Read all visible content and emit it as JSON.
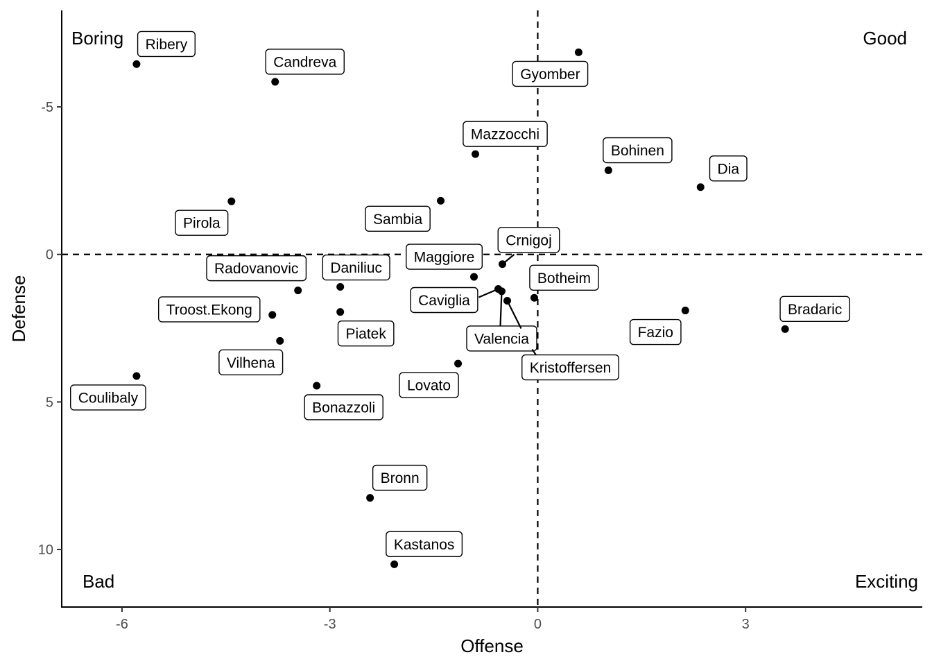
{
  "chart_data": {
    "type": "scatter",
    "title": "",
    "xlabel": "Offense",
    "ylabel": "Defense",
    "xlim": [
      -6.87,
      5.55
    ],
    "ylim": [
      -8.27,
      11.95
    ],
    "y_reversed": true,
    "x_ticks": [
      -6,
      -3,
      0,
      3
    ],
    "y_ticks": [
      -5,
      0,
      5,
      10
    ],
    "reference_lines": {
      "x": 0,
      "y": 0,
      "style": "dashed"
    },
    "grid": false,
    "quadrant_labels": {
      "top_left": "Boring",
      "top_right": "Good",
      "bottom_left": "Bad",
      "bottom_right": "Exciting"
    },
    "points": [
      {
        "label": "Ribery",
        "x": -5.79,
        "y": -6.45
      },
      {
        "label": "Candreva",
        "x": -3.79,
        "y": -5.85
      },
      {
        "label": "Gyomber",
        "x": 0.59,
        "y": -6.85
      },
      {
        "label": "Mazzocchi",
        "x": -0.9,
        "y": -3.4
      },
      {
        "label": "Bohinen",
        "x": 1.02,
        "y": -2.85
      },
      {
        "label": "Dia",
        "x": 2.35,
        "y": -2.28
      },
      {
        "label": "Pirola",
        "x": -4.42,
        "y": -1.8
      },
      {
        "label": "Sambia",
        "x": -1.4,
        "y": -1.82
      },
      {
        "label": "Crnigoj",
        "x": -0.51,
        "y": 0.33
      },
      {
        "label": "Maggiore",
        "x": -0.92,
        "y": 0.76
      },
      {
        "label": "Radovanovic",
        "x": -3.46,
        "y": 1.22
      },
      {
        "label": "Daniliuc",
        "x": -2.85,
        "y": 1.1
      },
      {
        "label": "Caviglia",
        "x": -0.57,
        "y": 1.17
      },
      {
        "label": "Botheim",
        "x": -0.05,
        "y": 1.47
      },
      {
        "label": "Troost.Ekong",
        "x": -3.83,
        "y": 2.05
      },
      {
        "label": "Piatek",
        "x": -2.85,
        "y": 1.95
      },
      {
        "label": "Valencia",
        "x": -0.52,
        "y": 1.25
      },
      {
        "label": "Kristoffersen",
        "x": -0.44,
        "y": 1.57
      },
      {
        "label": "Fazio",
        "x": 2.13,
        "y": 1.9
      },
      {
        "label": "Bradaric",
        "x": 3.57,
        "y": 2.53
      },
      {
        "label": "Vilhena",
        "x": -3.72,
        "y": 2.93
      },
      {
        "label": "Lovato",
        "x": -1.15,
        "y": 3.7
      },
      {
        "label": "Coulibaly",
        "x": -5.79,
        "y": 4.12
      },
      {
        "label": "Bonazzoli",
        "x": -3.19,
        "y": 4.45
      },
      {
        "label": "Bronn",
        "x": -2.42,
        "y": 8.25
      },
      {
        "label": "Kastanos",
        "x": -2.07,
        "y": 10.5
      }
    ]
  }
}
